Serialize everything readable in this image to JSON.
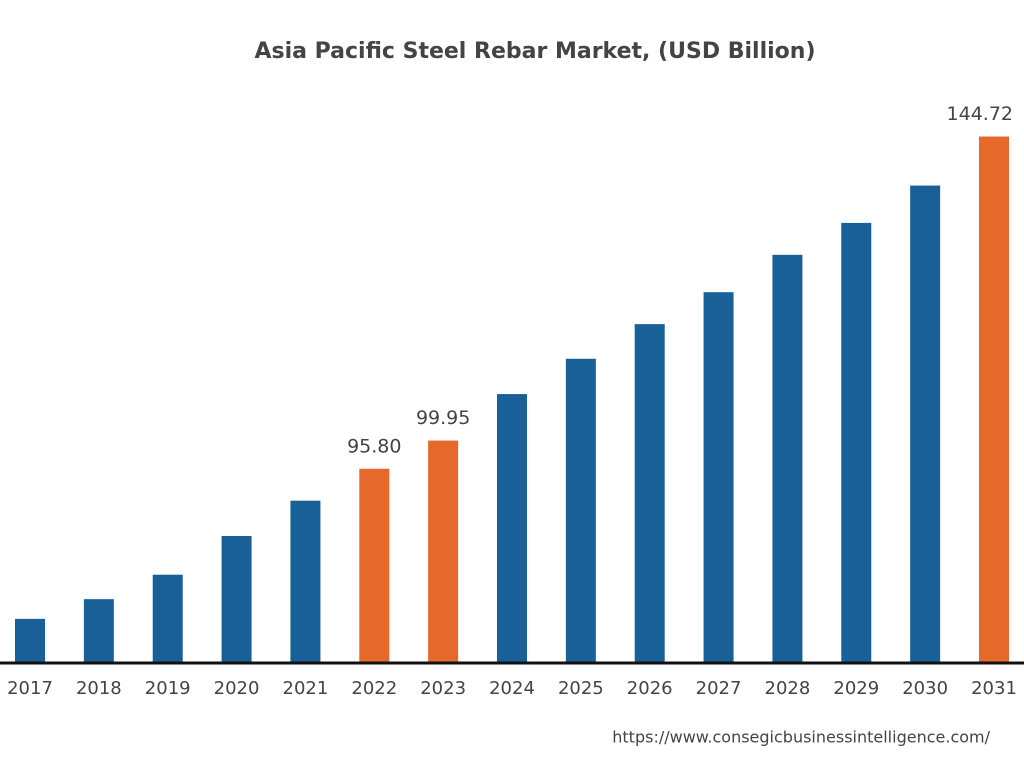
{
  "chart_data": {
    "type": "bar",
    "title": "Asia Pacific Steel Rebar Market, (USD Billion)",
    "categories": [
      "2017",
      "2018",
      "2019",
      "2020",
      "2021",
      "2022",
      "2023",
      "2024",
      "2025",
      "2026",
      "2027",
      "2028",
      "2029",
      "2030",
      "2031"
    ],
    "values": [
      73.7,
      76.6,
      80.2,
      85.9,
      91.1,
      95.8,
      99.95,
      106.8,
      112.0,
      117.1,
      121.8,
      127.3,
      132.0,
      137.5,
      144.72
    ],
    "value_labels": [
      null,
      null,
      null,
      null,
      null,
      "95.80",
      "99.95",
      null,
      null,
      null,
      null,
      null,
      null,
      null,
      "144.72"
    ],
    "colors": [
      "#1a6098",
      "#1a6098",
      "#1a6098",
      "#1a6098",
      "#1a6098",
      "#e5692a",
      "#e5692a",
      "#1a6098",
      "#1a6098",
      "#1a6098",
      "#1a6098",
      "#1a6098",
      "#1a6098",
      "#1a6098",
      "#e5692a"
    ],
    "ylim": [
      67.2,
      150.1
    ],
    "source": "https://www.consegicbusinessintelligence.com/"
  }
}
